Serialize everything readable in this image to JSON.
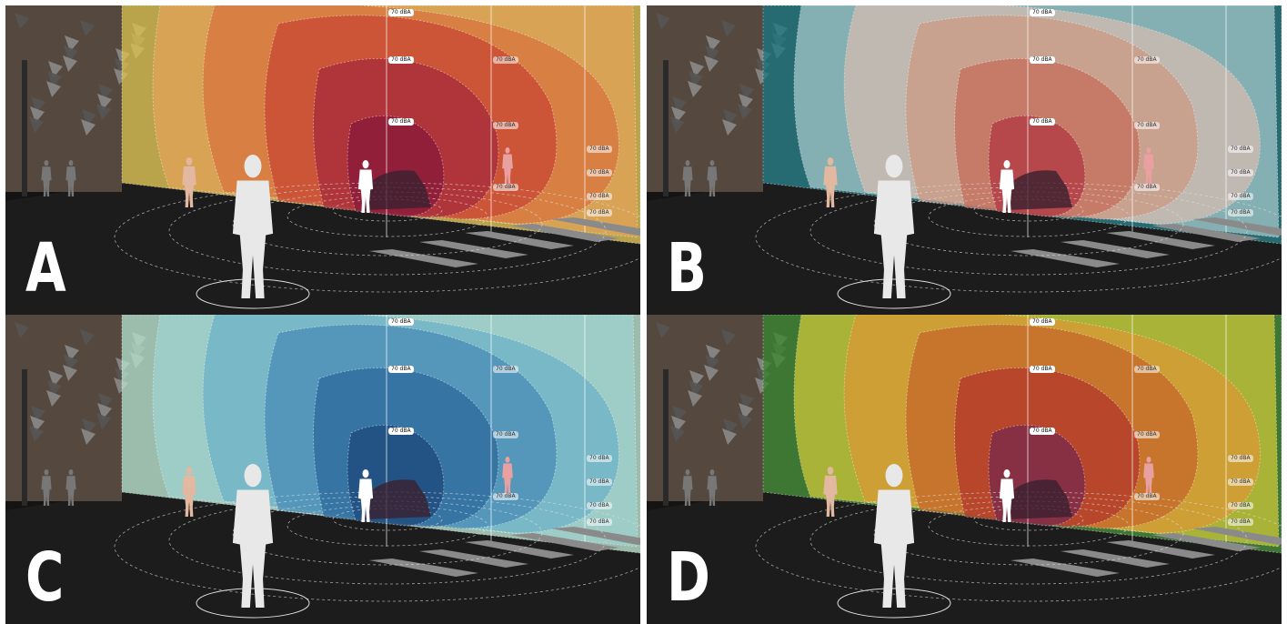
{
  "panels": [
    {
      "id": "A",
      "label": "A",
      "palette": [
        "#d9c75a",
        "#e2a35a",
        "#d8763e",
        "#c94a34",
        "#a92d3b",
        "#8a1a3a"
      ],
      "tint": "#b34a2a"
    },
    {
      "id": "B",
      "label": "B",
      "palette": [
        "#1f7b84",
        "#9fc4c6",
        "#d0bcb1",
        "#cc9b86",
        "#c6715f",
        "#b23a45"
      ],
      "tint": "#8f6e66"
    },
    {
      "id": "C",
      "label": "C",
      "palette": [
        "#bfe3c8",
        "#9fd1cf",
        "#6fb3c8",
        "#4b8fb8",
        "#2e6b9e",
        "#1e4a7c"
      ],
      "tint": "#3a7aa8"
    },
    {
      "id": "D",
      "label": "D",
      "palette": [
        "#3a8c3a",
        "#c8c43a",
        "#d89a33",
        "#c66a2a",
        "#b33a2a",
        "#7a2a4a"
      ],
      "tint": "#b3582a"
    }
  ],
  "noise_label": "70 dBA",
  "icons": {
    "figure": "person-silhouette-icon",
    "car": "car-icon",
    "tree": "tree-icon"
  }
}
